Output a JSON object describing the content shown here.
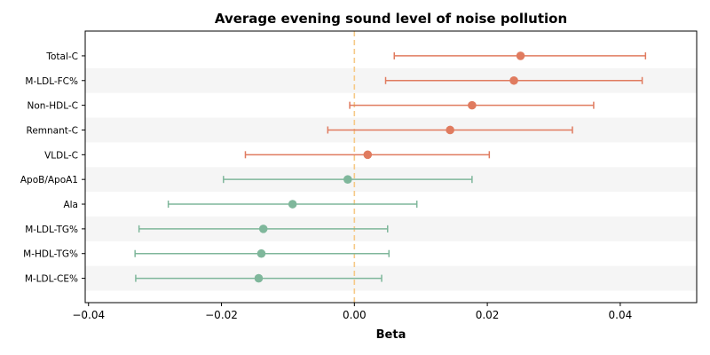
{
  "chart_data": {
    "type": "forest",
    "title": "Average evening sound level of noise pollution",
    "xlabel": "Beta",
    "ylabel": "",
    "xlim": [
      -0.0405,
      0.0515
    ],
    "xticks": [
      -0.04,
      -0.02,
      0.0,
      0.02,
      0.04
    ],
    "xtick_labels": [
      "−0.04",
      "−0.02",
      "0.00",
      "0.02",
      "0.04"
    ],
    "reference_line": {
      "x": 0.0,
      "style": "dashed",
      "color": "#f6c987"
    },
    "row_band_color": "#f5f5f5",
    "colors": {
      "positive": "#e07b5f",
      "negative": "#7fb79b"
    },
    "grid": false,
    "rows": [
      {
        "label": "Total-C",
        "beta": 0.025,
        "lower": 0.006,
        "upper": 0.0438
      },
      {
        "label": "M-LDL-FC%",
        "beta": 0.024,
        "lower": 0.0047,
        "upper": 0.0433
      },
      {
        "label": "Non-HDL-C",
        "beta": 0.0177,
        "lower": -0.0007,
        "upper": 0.036
      },
      {
        "label": "Remnant-C",
        "beta": 0.0144,
        "lower": -0.004,
        "upper": 0.0328
      },
      {
        "label": "VLDL-C",
        "beta": 0.002,
        "lower": -0.0164,
        "upper": 0.0203
      },
      {
        "label": "ApoB/ApoA1",
        "beta": -0.001,
        "lower": -0.0197,
        "upper": 0.0177
      },
      {
        "label": "Ala",
        "beta": -0.0093,
        "lower": -0.028,
        "upper": 0.0094
      },
      {
        "label": "M-LDL-TG%",
        "beta": -0.0137,
        "lower": -0.0324,
        "upper": 0.005
      },
      {
        "label": "M-HDL-TG%",
        "beta": -0.014,
        "lower": -0.033,
        "upper": 0.0052
      },
      {
        "label": "M-LDL-CE%",
        "beta": -0.0144,
        "lower": -0.0329,
        "upper": 0.0041
      }
    ]
  }
}
